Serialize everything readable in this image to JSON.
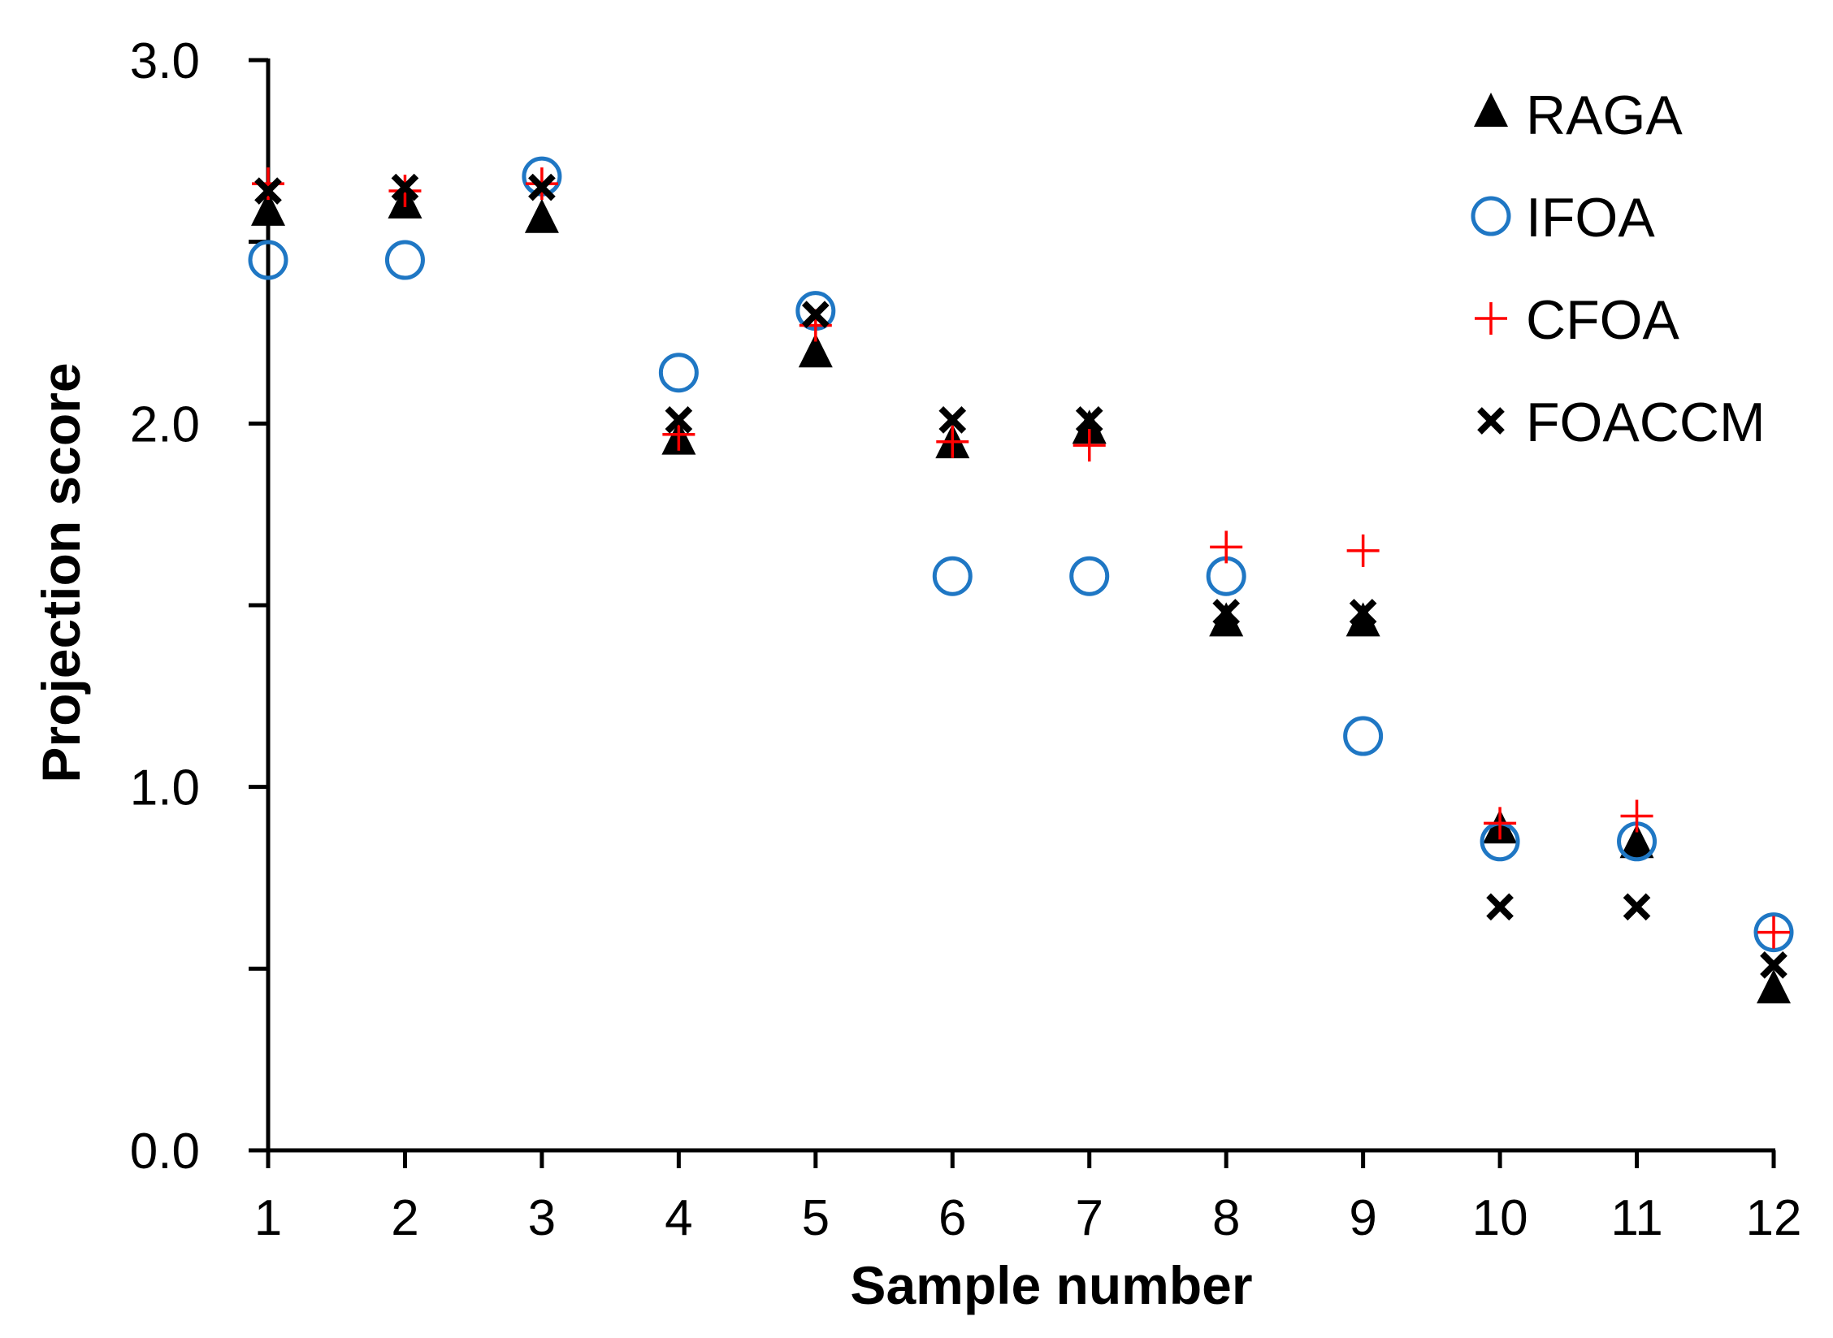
{
  "chart_data": {
    "type": "scatter",
    "title": "",
    "xlabel": "Sample number",
    "ylabel": "Projection score",
    "x": [
      1,
      2,
      3,
      4,
      5,
      6,
      7,
      8,
      9,
      10,
      11,
      12
    ],
    "xlim": [
      1,
      12
    ],
    "ylim": [
      0,
      3
    ],
    "yticks": [
      0,
      1,
      2,
      3
    ],
    "ytick_labels": [
      "0.0",
      "1.0",
      "2.0",
      "3.0"
    ],
    "yminor": [
      0.5,
      1.5,
      2.5
    ],
    "grid": false,
    "legend_position": "top-right",
    "series": [
      {
        "name": "RAGA",
        "marker": "triangle",
        "color": "#000000",
        "values": [
          2.58,
          2.6,
          2.56,
          1.95,
          2.19,
          1.94,
          1.98,
          1.45,
          1.45,
          0.88,
          0.84,
          0.44
        ]
      },
      {
        "name": "IFOA",
        "marker": "circle",
        "color": "#1f77c4",
        "values": [
          2.45,
          2.45,
          2.68,
          2.14,
          2.31,
          1.58,
          1.58,
          1.58,
          1.14,
          0.85,
          0.85,
          0.6
        ]
      },
      {
        "name": "CFOA",
        "marker": "plus",
        "color": "#ff0000",
        "values": [
          2.66,
          2.64,
          2.66,
          1.97,
          2.27,
          1.95,
          1.94,
          1.66,
          1.65,
          0.9,
          0.92,
          0.6
        ]
      },
      {
        "name": "FOACCM",
        "marker": "cross",
        "color": "#000000",
        "values": [
          2.64,
          2.65,
          2.65,
          2.01,
          2.3,
          2.01,
          2.01,
          1.48,
          1.48,
          0.67,
          0.67,
          0.51
        ]
      }
    ]
  }
}
